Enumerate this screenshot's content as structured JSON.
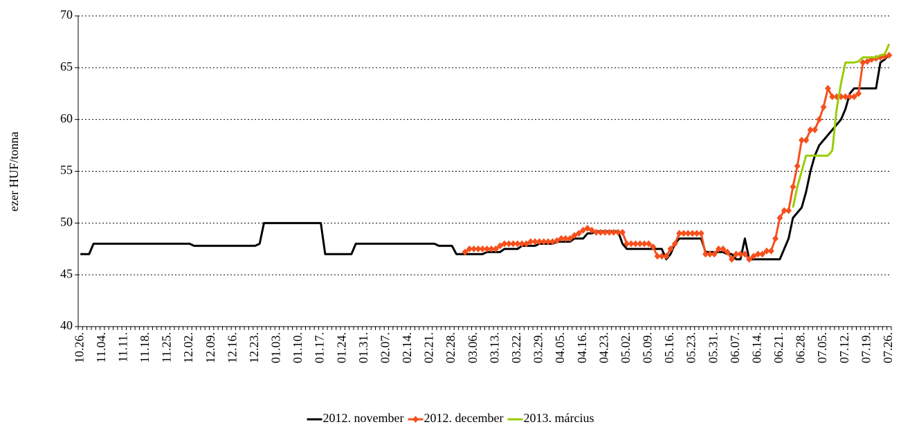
{
  "chart_data": {
    "type": "line",
    "ylabel": "ezer HUF/tonna",
    "categories": [
      "10.26.",
      null,
      null,
      null,
      null,
      "11.04.",
      null,
      null,
      null,
      null,
      "11.11.",
      null,
      null,
      null,
      null,
      "11.18.",
      null,
      null,
      null,
      null,
      "11.25.",
      null,
      null,
      null,
      null,
      "12.02.",
      null,
      null,
      null,
      null,
      "12.09.",
      null,
      null,
      null,
      null,
      "12.16.",
      null,
      null,
      null,
      null,
      "12.23.",
      null,
      null,
      null,
      null,
      "01.03.",
      null,
      null,
      null,
      null,
      "01.10.",
      null,
      null,
      null,
      null,
      "01.17.",
      null,
      null,
      null,
      null,
      "01.24.",
      null,
      null,
      null,
      null,
      "01.31.",
      null,
      null,
      null,
      null,
      "02.07.",
      null,
      null,
      null,
      null,
      "02.14.",
      null,
      null,
      null,
      null,
      "02.21.",
      null,
      null,
      null,
      null,
      "02.28.",
      null,
      null,
      null,
      null,
      "03.06.",
      null,
      null,
      null,
      null,
      "03.13.",
      null,
      null,
      null,
      null,
      "03.22.",
      null,
      null,
      null,
      null,
      "03.29.",
      null,
      null,
      null,
      null,
      "04.05.",
      null,
      null,
      null,
      null,
      "04.16.",
      null,
      null,
      null,
      null,
      "04.23.",
      null,
      null,
      null,
      null,
      "05.02.",
      null,
      null,
      null,
      null,
      "05.09.",
      null,
      null,
      null,
      null,
      "05.16.",
      null,
      null,
      null,
      null,
      "05.23.",
      null,
      null,
      null,
      null,
      "05.31.",
      null,
      null,
      null,
      null,
      "06.07.",
      null,
      null,
      null,
      null,
      "06.14.",
      null,
      null,
      null,
      null,
      "06.21.",
      null,
      null,
      null,
      null,
      "06.28.",
      null,
      null,
      null,
      null,
      "07.05.",
      null,
      null,
      null,
      null,
      "07.12.",
      null,
      null,
      null,
      null,
      "07.19.",
      null,
      null,
      null,
      null,
      "07.26."
    ],
    "series": [
      {
        "name": "2012. november",
        "color": "#000000",
        "values": [
          47,
          47,
          47,
          48,
          48,
          48,
          48,
          48,
          48,
          48,
          48,
          48,
          48,
          48,
          48,
          48,
          48,
          48,
          48,
          48,
          48,
          48,
          48,
          48,
          48,
          48,
          47.8,
          47.8,
          47.8,
          47.8,
          47.8,
          47.8,
          47.8,
          47.8,
          47.8,
          47.8,
          47.8,
          47.8,
          47.8,
          47.8,
          47.8,
          48,
          50,
          50,
          50,
          50,
          50,
          50,
          50,
          50,
          50,
          50,
          50,
          50,
          50,
          50,
          47,
          47,
          47,
          47,
          47,
          47,
          47,
          48,
          48,
          48,
          48,
          48,
          48,
          48,
          48,
          48,
          48,
          48,
          48,
          48,
          48,
          48,
          48,
          48,
          48,
          48,
          47.8,
          47.8,
          47.8,
          47.8,
          47,
          47,
          47,
          47,
          47,
          47,
          47,
          47.2,
          47.2,
          47.2,
          47.2,
          47.5,
          47.5,
          47.5,
          47.5,
          47.8,
          47.8,
          47.8,
          47.8,
          48,
          48,
          48,
          48,
          48.2,
          48.2,
          48.2,
          48.2,
          48.5,
          48.5,
          48.5,
          49,
          49,
          49.2,
          49.2,
          49.2,
          49.2,
          49.2,
          49.2,
          48,
          47.5,
          47.5,
          47.5,
          47.5,
          47.5,
          47.5,
          47.5,
          47.5,
          47.5,
          46.5,
          47,
          48,
          48.5,
          48.5,
          48.5,
          48.5,
          48.5,
          48.5,
          47.2,
          47.2,
          47.2,
          47.2,
          47.2,
          47,
          47,
          46.5,
          46.5,
          48.5,
          46.5,
          46.5,
          46.5,
          46.5,
          46.5,
          46.5,
          46.5,
          46.5,
          47.5,
          48.5,
          50.5,
          51,
          51.5,
          53,
          55,
          56.5,
          57.5,
          58,
          58.5,
          59,
          59.5,
          60,
          61,
          62.5,
          63,
          63,
          63,
          63,
          63,
          63,
          65.5,
          65.8,
          66.3
        ]
      },
      {
        "name": "2012. december",
        "color": "#f5501e",
        "marker": "diamond",
        "values": [
          null,
          null,
          null,
          null,
          null,
          null,
          null,
          null,
          null,
          null,
          null,
          null,
          null,
          null,
          null,
          null,
          null,
          null,
          null,
          null,
          null,
          null,
          null,
          null,
          null,
          null,
          null,
          null,
          null,
          null,
          null,
          null,
          null,
          null,
          null,
          null,
          null,
          null,
          null,
          null,
          null,
          null,
          null,
          null,
          null,
          null,
          null,
          null,
          null,
          null,
          null,
          null,
          null,
          null,
          null,
          null,
          null,
          null,
          null,
          null,
          null,
          null,
          null,
          null,
          null,
          null,
          null,
          null,
          null,
          null,
          null,
          null,
          null,
          null,
          null,
          null,
          null,
          null,
          null,
          null,
          null,
          null,
          null,
          null,
          null,
          null,
          null,
          null,
          47.2,
          47.5,
          47.5,
          47.5,
          47.5,
          47.5,
          47.5,
          47.5,
          47.8,
          48,
          48,
          48,
          48,
          48,
          48,
          48.2,
          48.2,
          48.2,
          48.2,
          48.2,
          48.2,
          48.3,
          48.5,
          48.5,
          48.5,
          48.8,
          49,
          49.3,
          49.5,
          49.3,
          49.1,
          49.1,
          49.1,
          49.1,
          49.1,
          49.1,
          49.1,
          48,
          48,
          48,
          48,
          48,
          48,
          47.7,
          46.8,
          46.8,
          46.8,
          47.5,
          48,
          49,
          49,
          49,
          49,
          49,
          49,
          47,
          47,
          47,
          47.5,
          47.5,
          47.2,
          46.5,
          47,
          47,
          47,
          46.5,
          46.8,
          47,
          47,
          47.3,
          47.3,
          48.5,
          50.5,
          51.2,
          51.2,
          53.5,
          55.5,
          58,
          58,
          59,
          59,
          60,
          61.2,
          63,
          62.2,
          62.2,
          62.2,
          62.2,
          62.2,
          62.2,
          62.5,
          65.5,
          65.6,
          65.8,
          65.9,
          66,
          66.1,
          66.2
        ]
      },
      {
        "name": "2013. március",
        "color": "#99cc00",
        "values": [
          null,
          null,
          null,
          null,
          null,
          null,
          null,
          null,
          null,
          null,
          null,
          null,
          null,
          null,
          null,
          null,
          null,
          null,
          null,
          null,
          null,
          null,
          null,
          null,
          null,
          null,
          null,
          null,
          null,
          null,
          null,
          null,
          null,
          null,
          null,
          null,
          null,
          null,
          null,
          null,
          null,
          null,
          null,
          null,
          null,
          null,
          null,
          null,
          null,
          null,
          null,
          null,
          null,
          null,
          null,
          null,
          null,
          null,
          null,
          null,
          null,
          null,
          null,
          null,
          null,
          null,
          null,
          null,
          null,
          null,
          null,
          null,
          null,
          null,
          null,
          null,
          null,
          null,
          null,
          null,
          null,
          null,
          null,
          null,
          null,
          null,
          null,
          null,
          null,
          null,
          null,
          null,
          null,
          null,
          null,
          null,
          null,
          null,
          null,
          null,
          null,
          null,
          null,
          null,
          null,
          null,
          null,
          null,
          null,
          null,
          null,
          null,
          null,
          null,
          null,
          null,
          null,
          null,
          null,
          null,
          null,
          null,
          null,
          null,
          null,
          null,
          null,
          null,
          null,
          null,
          null,
          null,
          null,
          null,
          null,
          null,
          null,
          null,
          null,
          null,
          null,
          null,
          null,
          null,
          null,
          null,
          null,
          null,
          null,
          null,
          null,
          null,
          null,
          null,
          null,
          null,
          null,
          null,
          null,
          null,
          null,
          null,
          null,
          51.5,
          53.5,
          55,
          56.5,
          56.5,
          56.5,
          56.5,
          56.5,
          56.5,
          57,
          61,
          63.5,
          65.5,
          65.5,
          65.5,
          65.6,
          66,
          66,
          66,
          66,
          66.2,
          66.3,
          67.3
        ]
      }
    ],
    "ylim": [
      40,
      70
    ],
    "yticks": [
      40,
      45,
      50,
      55,
      60,
      65,
      70
    ],
    "grid": true,
    "legend": "bottom"
  }
}
